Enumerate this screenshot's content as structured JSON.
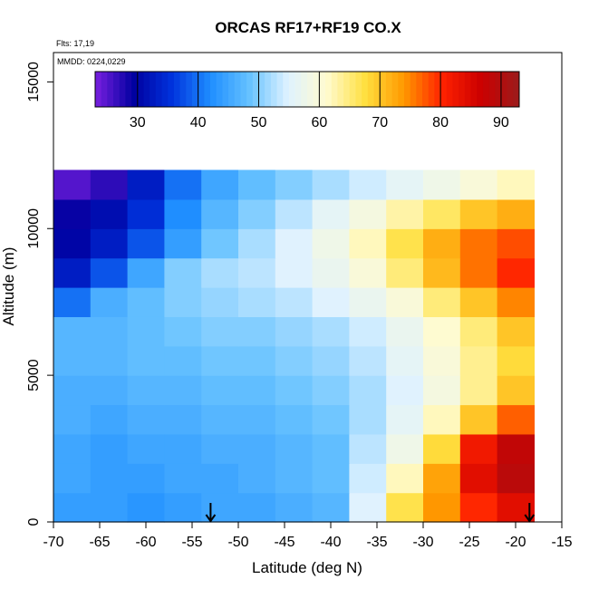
{
  "chart_data": {
    "type": "heatmap",
    "title": "ORCAS RF17+RF19 CO.X",
    "notes": [
      "Flts: 17,19",
      "MMDD: 0224,0229"
    ],
    "xlabel": "Latitude (deg N)",
    "ylabel": "Altitude (m)",
    "xlim": [
      -70,
      -15
    ],
    "ylim": [
      0,
      16000
    ],
    "xticks": [
      -70,
      -65,
      -60,
      -55,
      -50,
      -45,
      -40,
      -35,
      -30,
      -25,
      -20,
      -15
    ],
    "yticks": [
      0,
      5000,
      10000,
      15000
    ],
    "grid": false,
    "colorbar": {
      "placement": "top-inside",
      "range": [
        23,
        93
      ],
      "ticks": [
        30,
        40,
        50,
        60,
        70,
        80,
        90
      ],
      "colors": [
        "#7a1fe0",
        "#0000a0",
        "#0033dd",
        "#1f8fff",
        "#66c2ff",
        "#dff2ff",
        "#fffbd0",
        "#ffe040",
        "#ff9900",
        "#ff2200",
        "#cc0000",
        "#9b1b1b"
      ]
    },
    "x_grid": [
      -68,
      -64,
      -60,
      -56,
      -52,
      -48,
      -44,
      -40,
      -36,
      -32,
      -28,
      -24,
      -20
    ],
    "y_grid": [
      500,
      1500,
      2500,
      3500,
      4500,
      5500,
      6500,
      7500,
      8500,
      9500,
      10500,
      11500
    ],
    "z": [
      [
        44,
        44,
        43,
        44,
        45,
        45,
        46,
        47,
        55,
        67,
        74,
        80,
        84
      ],
      [
        45,
        44,
        44,
        45,
        45,
        46,
        47,
        48,
        54,
        62,
        73,
        84,
        89
      ],
      [
        45,
        44,
        45,
        45,
        46,
        46,
        47,
        48,
        53,
        58,
        68,
        82,
        88
      ],
      [
        46,
        45,
        46,
        46,
        47,
        47,
        48,
        49,
        52,
        56,
        62,
        70,
        77
      ],
      [
        46,
        46,
        47,
        47,
        48,
        48,
        49,
        50,
        52,
        55,
        59,
        64,
        70
      ],
      [
        47,
        47,
        48,
        48,
        49,
        49,
        50,
        51,
        53,
        56,
        60,
        64,
        68
      ],
      [
        47,
        47,
        48,
        49,
        50,
        50,
        51,
        52,
        54,
        57,
        61,
        65,
        70
      ],
      [
        40,
        46,
        48,
        50,
        51,
        52,
        53,
        55,
        57,
        60,
        65,
        70,
        75
      ],
      [
        33,
        38,
        45,
        50,
        52,
        53,
        55,
        57,
        60,
        65,
        71,
        76,
        80
      ],
      [
        30,
        33,
        38,
        44,
        49,
        52,
        55,
        58,
        62,
        67,
        72,
        76,
        78
      ],
      [
        29,
        31,
        35,
        42,
        47,
        50,
        53,
        56,
        59,
        63,
        66,
        70,
        72
      ],
      [
        25,
        27,
        33,
        40,
        45,
        48,
        50,
        52,
        54,
        56,
        58,
        60,
        62
      ]
    ],
    "profile_markers_lat": [
      -53,
      -18.5
    ]
  }
}
